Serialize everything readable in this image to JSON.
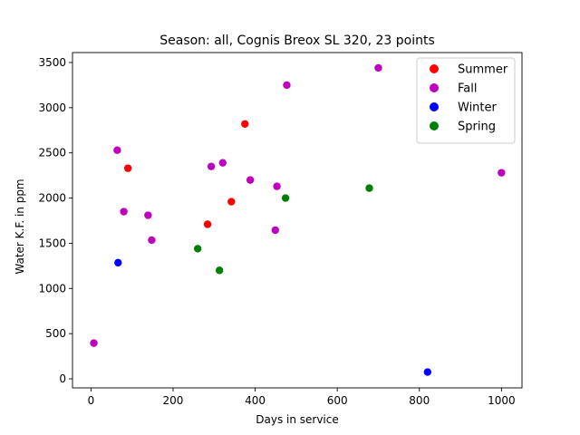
{
  "chart_data": {
    "type": "scatter",
    "title": "Season: all, Cognis Breox SL 320, 23 points",
    "xlabel": "Days in service",
    "ylabel": "Water K.F. in ppm",
    "xlim": [
      -45,
      1050
    ],
    "ylim": [
      -100,
      3610
    ],
    "xticks": [
      0,
      200,
      400,
      600,
      800,
      1000
    ],
    "yticks": [
      0,
      500,
      1000,
      1500,
      2000,
      2500,
      3000,
      3500
    ],
    "grid": false,
    "legend_position": "top-right",
    "series": [
      {
        "name": "Summer",
        "color": "#ff0000",
        "points": [
          {
            "x": 90,
            "y": 2330
          },
          {
            "x": 284,
            "y": 1710
          },
          {
            "x": 342,
            "y": 1960
          },
          {
            "x": 375,
            "y": 2820
          }
        ]
      },
      {
        "name": "Fall",
        "color": "#bf00bf",
        "points": [
          {
            "x": 7,
            "y": 395
          },
          {
            "x": 64,
            "y": 2530
          },
          {
            "x": 80,
            "y": 1850
          },
          {
            "x": 139,
            "y": 1810
          },
          {
            "x": 148,
            "y": 1535
          },
          {
            "x": 293,
            "y": 2350
          },
          {
            "x": 321,
            "y": 2390
          },
          {
            "x": 388,
            "y": 2200
          },
          {
            "x": 449,
            "y": 1645
          },
          {
            "x": 453,
            "y": 2130
          },
          {
            "x": 477,
            "y": 3250
          },
          {
            "x": 700,
            "y": 3440
          },
          {
            "x": 1000,
            "y": 2280
          }
        ]
      },
      {
        "name": "Winter",
        "color": "#0000ff",
        "points": [
          {
            "x": 66,
            "y": 1285
          },
          {
            "x": 820,
            "y": 75
          }
        ]
      },
      {
        "name": "Spring",
        "color": "#008000",
        "points": [
          {
            "x": 260,
            "y": 1440
          },
          {
            "x": 313,
            "y": 1200
          },
          {
            "x": 474,
            "y": 2000
          },
          {
            "x": 678,
            "y": 2110
          }
        ]
      }
    ]
  }
}
